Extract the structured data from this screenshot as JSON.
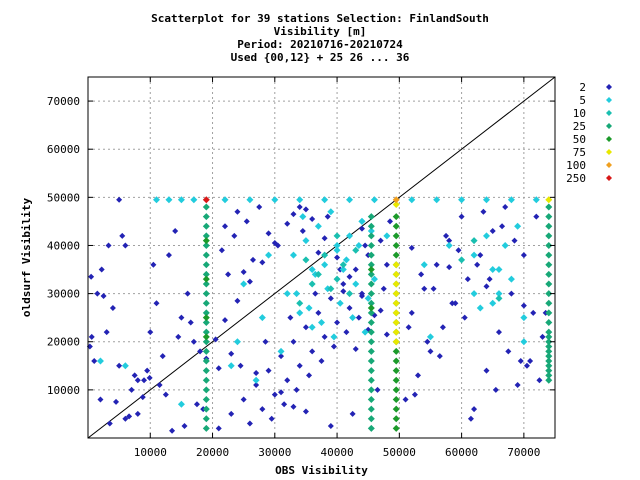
{
  "title_lines": [
    "Scatterplot for   39 stations Selection: FinlandSouth",
    "Visibility [m]",
    "Period: 20210716-20210724",
    "Used {00,12} + 25 26 ... 36"
  ],
  "chart_data": {
    "type": "scatter",
    "xlabel": "OBS Visibility",
    "ylabel": "oldsurf Visibility",
    "xlim": [
      0,
      75000
    ],
    "ylim": [
      0,
      75000
    ],
    "xticks": [
      10000,
      20000,
      30000,
      40000,
      50000,
      60000,
      70000
    ],
    "yticks": [
      10000,
      20000,
      30000,
      40000,
      50000,
      60000,
      70000
    ],
    "grid": true,
    "diagonal_line": true,
    "legend_position": "right",
    "legend": [
      {
        "label": "2",
        "color": "#2323b4"
      },
      {
        "label": "5",
        "color": "#22ccdd"
      },
      {
        "label": "10",
        "color": "#1abfb0"
      },
      {
        "label": "25",
        "color": "#17a877"
      },
      {
        "label": "50",
        "color": "#1c9a2a"
      },
      {
        "label": "75",
        "color": "#e8e800"
      },
      {
        "label": "100",
        "color": "#f0a020"
      },
      {
        "label": "250",
        "color": "#d81818"
      }
    ],
    "series": [
      {
        "name": "2",
        "color": "#2323b4",
        "x": [
          500,
          1500,
          2500,
          3000,
          4000,
          5000,
          6000,
          7000,
          8000,
          9000,
          10000,
          11000,
          12000,
          13000,
          14000,
          15000,
          16000,
          17000,
          18000,
          5000,
          6000,
          2000,
          8000,
          3500,
          9500,
          12500,
          14500,
          16500,
          17500,
          21000,
          23000,
          25000,
          27000,
          29000,
          31000,
          33000,
          35000,
          37000,
          39000,
          41000,
          43000,
          45000,
          47000,
          22000,
          24000,
          26000,
          28000,
          30000,
          32000,
          34000,
          36000,
          38000,
          40000,
          42000,
          44000,
          46000,
          48000,
          21500,
          23500,
          25500,
          27500,
          29500,
          31500,
          33500,
          35500,
          37500,
          39500,
          41500,
          43500,
          45500,
          47500,
          22500,
          26500,
          30500,
          34500,
          38500,
          42500,
          46500,
          24500,
          28500,
          32500,
          36500,
          40500,
          44500,
          48500,
          51000,
          53000,
          55000,
          57000,
          59000,
          61000,
          63000,
          65000,
          67000,
          69000,
          71000,
          73000,
          52000,
          54000,
          56000,
          58000,
          60000,
          62000,
          64000,
          66000,
          68000,
          70000,
          72000,
          52500,
          56500,
          60500,
          64500,
          68500,
          72500,
          54500,
          58500,
          62500,
          66500,
          70500,
          51500,
          55500,
          59500,
          63500,
          67500,
          71500,
          53500,
          57500,
          61500,
          65500,
          69500,
          73500,
          10500,
          13500,
          15500,
          18500,
          11500,
          7500,
          4500,
          1000,
          300,
          600,
          2200,
          3300,
          5500,
          6600,
          8800,
          9900,
          19000,
          20500,
          22000,
          24000,
          26000,
          28000,
          30000,
          32000,
          34000,
          36000,
          38000,
          40000,
          42000,
          44000,
          46000,
          48000,
          23000,
          27000,
          31000,
          35000,
          39000,
          43000,
          47000,
          25000,
          29000,
          33000,
          37000,
          41000,
          45000,
          21000,
          33000,
          35000,
          44000,
          52000,
          58000,
          64000,
          70000
        ],
        "y": [
          33500,
          30000,
          29500,
          22000,
          27000,
          49500,
          40000,
          10000,
          5000,
          12000,
          22000,
          28000,
          17000,
          38000,
          43000,
          25000,
          30000,
          20000,
          18000,
          15000,
          4000,
          8000,
          12000,
          3000,
          14000,
          9000,
          21000,
          24000,
          7000,
          2000,
          5000,
          8000,
          11000,
          14000,
          17000,
          20000,
          23000,
          26000,
          29000,
          32000,
          35000,
          38000,
          41000,
          44000,
          47000,
          3000,
          6000,
          9000,
          12000,
          15000,
          18000,
          21000,
          24000,
          27000,
          30000,
          33000,
          36000,
          39000,
          42000,
          45000,
          48000,
          4000,
          7000,
          10000,
          13000,
          16000,
          19000,
          22000,
          25000,
          28000,
          31000,
          34000,
          37000,
          40000,
          43000,
          46000,
          5000,
          10000,
          15000,
          20000,
          25000,
          30000,
          35000,
          40000,
          45000,
          8000,
          13000,
          18000,
          23000,
          28000,
          33000,
          38000,
          43000,
          48000,
          11000,
          16000,
          21000,
          26000,
          31000,
          36000,
          41000,
          46000,
          6000,
          14000,
          22000,
          30000,
          38000,
          46000,
          9000,
          17000,
          25000,
          33000,
          41000,
          12000,
          20000,
          28000,
          36000,
          44000,
          15000,
          23000,
          31000,
          39000,
          47000,
          18000,
          26000,
          34000,
          42000,
          4000,
          10000,
          16000,
          26000,
          36000,
          1500,
          2500,
          6000,
          11000,
          13000,
          7500,
          16000,
          19000,
          21000,
          35000,
          40000,
          42000,
          4500,
          8500,
          12500,
          16500,
          20500,
          24500,
          28500,
          32500,
          36500,
          40500,
          44500,
          48000,
          45500,
          41500,
          37500,
          33500,
          29500,
          25500,
          21500,
          17500,
          13500,
          9500,
          5500,
          2500,
          18500,
          26500,
          34500,
          42500,
          46500,
          38500,
          30500,
          22500,
          14500,
          6500,
          47500,
          43500,
          39500,
          35500,
          31500,
          27500
        ],
        "size": 4
      },
      {
        "name": "5",
        "color": "#22ccdd",
        "x": [
          11000,
          13000,
          15000,
          17000,
          22000,
          26000,
          30000,
          34000,
          38000,
          42000,
          46000,
          24000,
          28000,
          32000,
          36000,
          40000,
          44000,
          48000,
          33000,
          35000,
          37000,
          39000,
          41000,
          43000,
          45000,
          34000,
          36000,
          38000,
          40000,
          42000,
          44000,
          46000,
          33500,
          35500,
          37500,
          39500,
          41500,
          43500,
          45500,
          34500,
          36500,
          38500,
          40500,
          42500,
          44500,
          52000,
          56000,
          60000,
          64000,
          68000,
          72000,
          54000,
          58000,
          62000,
          66000,
          70000,
          62000,
          64000,
          66000,
          68000,
          70000,
          63000,
          65000,
          67000,
          69000,
          23000,
          27000,
          31000,
          25000,
          29000,
          6000,
          2000,
          15000,
          55000,
          65000
        ],
        "y": [
          49500,
          49500,
          49500,
          49500,
          49500,
          49500,
          49500,
          49500,
          49500,
          49500,
          49500,
          20000,
          25000,
          30000,
          35000,
          40000,
          45000,
          42000,
          38000,
          41000,
          44000,
          47000,
          35000,
          32000,
          29000,
          26000,
          23000,
          36000,
          39000,
          42000,
          45000,
          33000,
          30000,
          27000,
          24000,
          21000,
          37000,
          40000,
          43000,
          46000,
          34000,
          31000,
          28000,
          25000,
          22000,
          49500,
          49500,
          49500,
          49500,
          49500,
          49500,
          36000,
          40000,
          30000,
          35000,
          25000,
          38000,
          42000,
          30000,
          33000,
          20000,
          27000,
          35000,
          40000,
          44000,
          15000,
          12000,
          18000,
          32000,
          38000,
          15000,
          16000,
          7000,
          21000,
          28000
        ],
        "size": 5
      },
      {
        "name": "10",
        "color": "#1abfb0",
        "x": [
          35000,
          37000,
          39000,
          41000,
          43000,
          36000,
          40000,
          38000,
          42000,
          34000,
          40000,
          60000,
          62000,
          66000
        ],
        "y": [
          37000,
          34000,
          31000,
          36000,
          39000,
          32000,
          33000,
          38000,
          30000,
          28000,
          42000,
          37000,
          41000,
          29000
        ],
        "size": 5
      },
      {
        "name": "25",
        "color": "#17a877",
        "x": [
          19000,
          19000,
          19000,
          19000,
          19000,
          19000,
          19000,
          19000,
          19000,
          19000,
          19000,
          19000,
          19000,
          19000,
          19000,
          19000,
          19000,
          19000,
          19000,
          19000,
          19000,
          19000,
          19000,
          19000,
          45500,
          45500,
          45500,
          45500,
          45500,
          45500,
          45500,
          45500,
          45500,
          45500,
          45500,
          45500,
          45500,
          45500,
          45500,
          45500,
          45500,
          45500,
          45500,
          45500,
          45500,
          45500,
          45500,
          74000,
          74000,
          74000,
          74000,
          74000,
          74000,
          74000,
          74000,
          74000,
          74000,
          74000,
          74000,
          74000,
          74000,
          74000,
          74000,
          74000,
          74000,
          74000,
          74000,
          74000,
          74000,
          74000,
          74000
        ],
        "y": [
          2000,
          4000,
          6000,
          8000,
          10000,
          12000,
          14000,
          16000,
          18000,
          20000,
          22000,
          24000,
          26000,
          28000,
          30000,
          32000,
          34000,
          36000,
          38000,
          40000,
          42000,
          44000,
          46000,
          48000,
          2000,
          4000,
          6000,
          8000,
          10000,
          12000,
          14000,
          16000,
          18000,
          20000,
          22000,
          24000,
          26000,
          28000,
          30000,
          32000,
          34000,
          36000,
          38000,
          40000,
          42000,
          44000,
          46000,
          12000,
          14000,
          16000,
          18000,
          20000,
          22000,
          24000,
          26000,
          28000,
          30000,
          32000,
          34000,
          36000,
          38000,
          40000,
          42000,
          44000,
          46000,
          48000,
          13000,
          15000,
          17000,
          19000,
          21000
        ],
        "size": 5
      },
      {
        "name": "50",
        "color": "#1c9a2a",
        "x": [
          49500,
          49500,
          49500,
          49500,
          49500,
          49500,
          49500,
          49500,
          49500,
          49500,
          49500,
          49500,
          49500,
          49500,
          49500,
          49500,
          49500,
          49500,
          49500,
          49500,
          49500,
          49500,
          49500,
          19000,
          19000,
          19000,
          19000,
          45500,
          45500
        ],
        "y": [
          2000,
          4000,
          6000,
          8000,
          10000,
          12000,
          14000,
          16000,
          18000,
          20000,
          22000,
          24000,
          26000,
          28000,
          30000,
          32000,
          34000,
          36000,
          38000,
          40000,
          42000,
          44000,
          46000,
          21000,
          25000,
          33000,
          41000,
          27000,
          35000
        ],
        "size": 5
      },
      {
        "name": "75",
        "color": "#e8e800",
        "x": [
          49500,
          49500,
          49500,
          49500,
          49500,
          49500,
          49500,
          49500,
          49500,
          49500,
          74000
        ],
        "y": [
          20000,
          22000,
          24000,
          26000,
          28000,
          30000,
          32000,
          34000,
          36000,
          48500,
          49500
        ],
        "size": 5
      },
      {
        "name": "100",
        "color": "#f0a020",
        "x": [
          49500
        ],
        "y": [
          49500
        ],
        "size": 5
      },
      {
        "name": "250",
        "color": "#d81818",
        "x": [
          19000
        ],
        "y": [
          49500
        ],
        "size": 5
      }
    ]
  }
}
